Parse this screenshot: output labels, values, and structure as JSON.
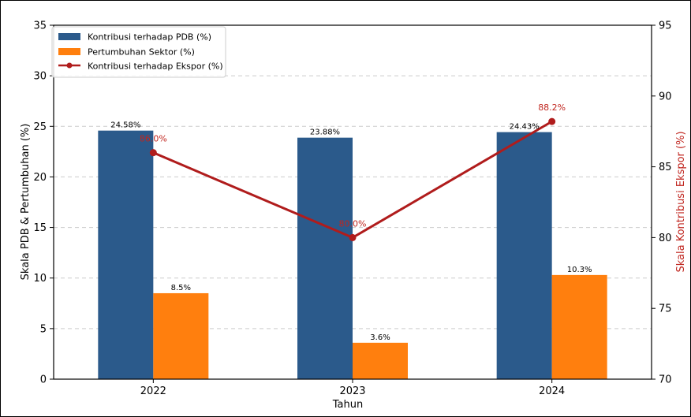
{
  "chart_data": {
    "type": "bar",
    "categories": [
      "2022",
      "2023",
      "2024"
    ],
    "xlabel": "Tahun",
    "ylabel": "Skala PDB & Pertumbuhan (%)",
    "y2label": "Skala Kontribusi Ekspor (%)",
    "ylim": [
      0,
      35
    ],
    "y2lim": [
      70,
      95
    ],
    "yticks": [
      0,
      5,
      10,
      15,
      20,
      25,
      30,
      35
    ],
    "y2ticks": [
      70,
      75,
      80,
      85,
      90,
      95
    ],
    "grid": "horizontal dashed",
    "legend_position": "top-left",
    "series": [
      {
        "name": "Kontribusi terhadap PDB (%)",
        "type": "bar",
        "axis": "left",
        "values": [
          24.58,
          23.88,
          24.43
        ],
        "labels": [
          "24.58%",
          "23.88%",
          "24.43%"
        ],
        "color": "#2b5a8b"
      },
      {
        "name": "Pertumbuhan Sektor (%)",
        "type": "bar",
        "axis": "left",
        "values": [
          8.5,
          3.6,
          10.3
        ],
        "labels": [
          "8.5%",
          "3.6%",
          "10.3%"
        ],
        "color": "#ff7f0e"
      },
      {
        "name": "Kontribusi terhadap Ekspor (%)",
        "type": "line",
        "axis": "right",
        "values": [
          86.0,
          80.0,
          88.2
        ],
        "labels": [
          "86.0%",
          "80.0%",
          "88.2%"
        ],
        "color": "#b01c1c"
      }
    ],
    "right_axis_color": "#c0261f"
  }
}
